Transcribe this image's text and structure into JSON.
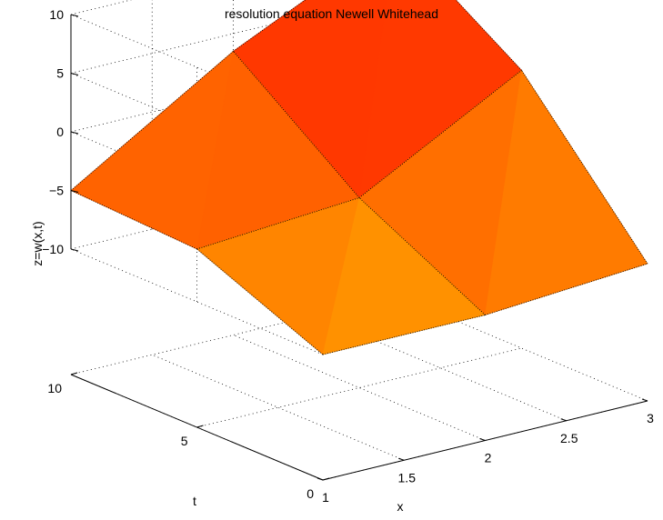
{
  "chart_data": {
    "type": "surface3d",
    "title": "resolution equation Newell Whitehead",
    "xlabel": "x",
    "ylabel": "t",
    "zlabel": "z=w(x,t)",
    "x": [
      1,
      2,
      3
    ],
    "t": [
      0,
      5,
      10
    ],
    "z": [
      [
        -10,
        -10,
        -9
      ],
      [
        -5.5,
        -4.5,
        3
      ],
      [
        -5,
        3.5,
        10
      ]
    ],
    "xlim": [
      1,
      3
    ],
    "ylim": [
      0,
      10
    ],
    "zlim": [
      -10,
      10
    ],
    "xticks": [
      "1",
      "1.5",
      "2",
      "2.5",
      "3"
    ],
    "yticks": [
      "0",
      "5",
      "10"
    ],
    "zticks": [
      "−10",
      "−5",
      "0",
      "5",
      "10"
    ],
    "grid": true,
    "colors": {
      "low": "#ffa000",
      "high": "#ff0000"
    }
  }
}
